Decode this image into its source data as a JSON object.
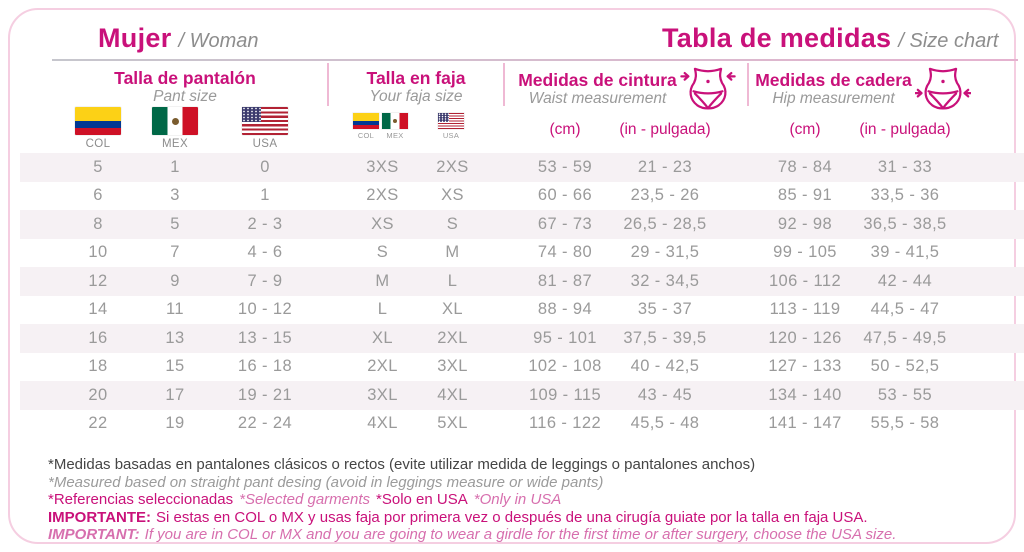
{
  "header": {
    "title_es": "Mujer",
    "title_en": "/ Woman",
    "right_title_es": "Tabla de medidas",
    "right_title_en": "/ Size chart"
  },
  "groups": {
    "pant": {
      "title": "Talla de pantalón",
      "subtitle": "Pant size",
      "flags": {
        "col": "COL",
        "mex": "MEX",
        "usa": "USA"
      }
    },
    "faja": {
      "title": "Talla en faja",
      "subtitle": "Your faja size",
      "flags": {
        "col": "COL",
        "mex": "MEX",
        "usa": "USA"
      }
    },
    "waist": {
      "title": "Medidas de cintura",
      "subtitle": "Waist measurement",
      "unit_cm": "(cm)",
      "unit_in": "(in - pulgada)"
    },
    "hip": {
      "title": "Medidas de cadera",
      "subtitle": "Hip measurement",
      "unit_cm": "(cm)",
      "unit_in": "(in - pulgada)"
    }
  },
  "table": {
    "columns": [
      "pant-col",
      "pant-mex",
      "pant-usa",
      "faja-col-mex",
      "faja-usa",
      "waist-cm",
      "waist-in",
      "hip-cm",
      "hip-in"
    ],
    "rows": [
      [
        "5",
        "1",
        "0",
        "3XS",
        "2XS",
        "53 - 59",
        "21 - 23",
        "78 - 84",
        "31 - 33"
      ],
      [
        "6",
        "3",
        "1",
        "2XS",
        "XS",
        "60 - 66",
        "23,5 - 26",
        "85 - 91",
        "33,5 - 36"
      ],
      [
        "8",
        "5",
        "2 - 3",
        "XS",
        "S",
        "67 - 73",
        "26,5 - 28,5",
        "92 - 98",
        "36,5 - 38,5"
      ],
      [
        "10",
        "7",
        "4 - 6",
        "S",
        "M",
        "74 - 80",
        "29 - 31,5",
        "99 - 105",
        "39 - 41,5"
      ],
      [
        "12",
        "9",
        "7 - 9",
        "M",
        "L",
        "81 - 87",
        "32 - 34,5",
        "106 - 112",
        "42 - 44"
      ],
      [
        "14",
        "11",
        "10 - 12",
        "L",
        "XL",
        "88 - 94",
        "35 - 37",
        "113 - 119",
        "44,5 - 47"
      ],
      [
        "16",
        "13",
        "13 - 15",
        "XL",
        "2XL",
        "95 - 101",
        "37,5 - 39,5",
        "120 - 126",
        "47,5 - 49,5"
      ],
      [
        "18",
        "15",
        "16 - 18",
        "2XL",
        "3XL",
        "102 - 108",
        "40 - 42,5",
        "127 - 133",
        "50 - 52,5"
      ],
      [
        "20",
        "17",
        "19 - 21",
        "3XL",
        "4XL",
        "109 - 115",
        "43 - 45",
        "134 - 140",
        "53 - 55"
      ],
      [
        "22",
        "19",
        "22 - 24",
        "4XL",
        "5XL",
        "116 - 122",
        "45,5 - 48",
        "141 - 147",
        "55,5 - 58"
      ]
    ]
  },
  "notes": {
    "es_measured": "*Medidas basadas en pantalones clásicos o rectos (evite utilizar medida de leggings o pantalones anchos)",
    "en_measured": "*Measured based on straight pant desing (avoid in leggings measure or wide pants)",
    "ref_es": "*Referencias seleccionadas",
    "ref_en": "*Selected garments",
    "solo_es": "*Solo en USA",
    "solo_en": "*Only in USA",
    "importante_label": "IMPORTANTE:",
    "importante_text": "Si estas en COL o MX y usas faja por primera vez o después de una cirugía guiate por la talla en faja USA.",
    "important_label": "IMPORTANT:",
    "important_text": "If you are in COL or MX and you are going to wear a girdle for the first time or after surgery, choose the USA size."
  },
  "colors": {
    "brand": "#c9117a",
    "brand_light": "#d76fae",
    "divider_pink": "#efb9d4",
    "gray_text": "#9a9a9a",
    "stripe": "#f6f1f4"
  }
}
